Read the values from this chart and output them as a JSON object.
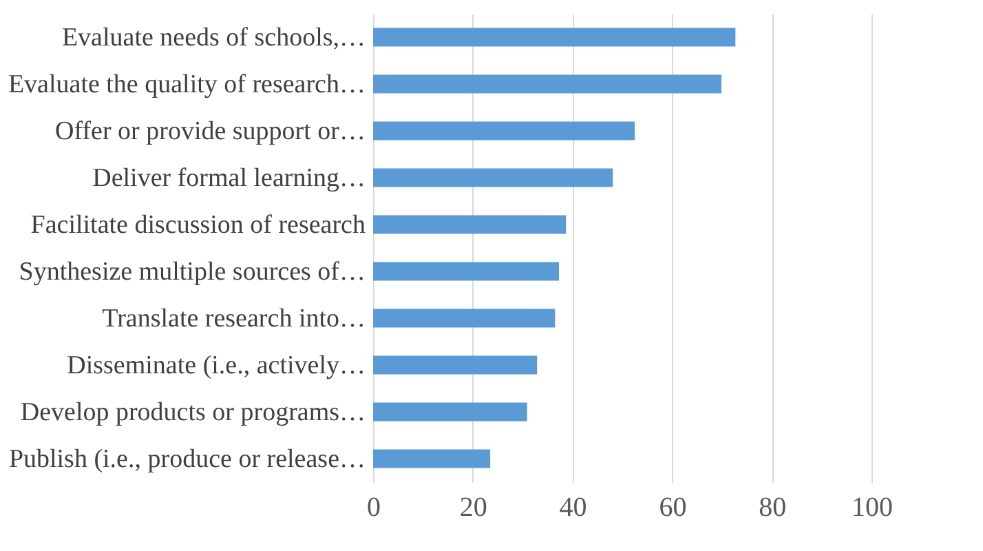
{
  "chart_data": {
    "type": "bar",
    "orientation": "horizontal",
    "categories": [
      "Evaluate needs of schools,…",
      "Evaluate the quality of research…",
      "Offer or provide support or…",
      "Deliver formal learning…",
      "Facilitate discussion of research",
      "Synthesize multiple sources of…",
      "Translate research into…",
      "Disseminate (i.e., actively…",
      "Develop products or programs…",
      "Publish (i.e., produce or release…"
    ],
    "values": [
      72.7,
      69.9,
      52.5,
      48.1,
      38.7,
      37.3,
      36.5,
      32.9,
      30.9,
      23.5
    ],
    "color": "#5b9bd5",
    "xlim": [
      0,
      100
    ],
    "xticks": [
      0,
      20,
      40,
      60,
      80,
      100
    ],
    "grid": "x"
  }
}
